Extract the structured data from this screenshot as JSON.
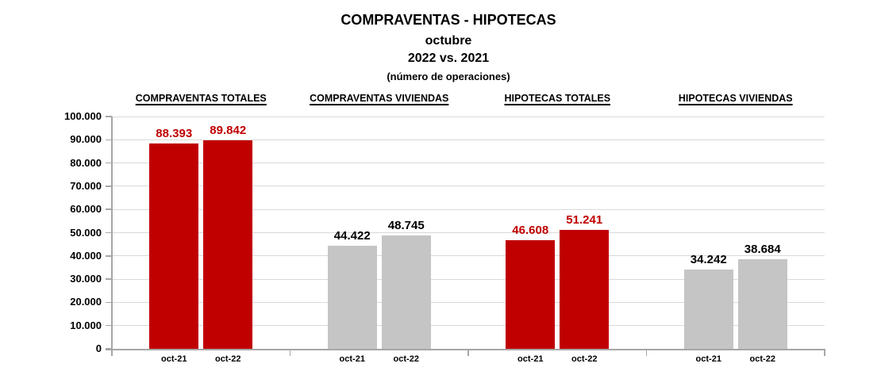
{
  "title": {
    "main": "COMPRAVENTAS - HIPOTECAS",
    "sub1": "octubre",
    "sub2": "2022 vs. 2021",
    "sub3": "(número de operaciones)"
  },
  "chart_data": {
    "type": "bar",
    "title": "COMPRAVENTAS - HIPOTECAS",
    "subtitle": [
      "octubre",
      "2022 vs. 2021",
      "(número de operaciones)"
    ],
    "categories": [
      "oct-21",
      "oct-22"
    ],
    "ylim": [
      0,
      100000
    ],
    "y_tick_step": 10000,
    "y_tick_labels": [
      "100.000",
      "90.000",
      "80.000",
      "70.000",
      "60.000",
      "50.000",
      "40.000",
      "30.000",
      "20.000",
      "10.000",
      "0"
    ],
    "grid": true,
    "legend": false,
    "groups": [
      {
        "label": "COMPRAVENTAS TOTALES",
        "values": [
          88393,
          89842
        ],
        "value_labels": [
          "88.393",
          "89.842"
        ],
        "bar_color": "#C00000",
        "value_label_color": "#C00000"
      },
      {
        "label": "COMPRAVENTAS VIVIENDAS",
        "values": [
          44422,
          48745
        ],
        "value_labels": [
          "44.422",
          "48.745"
        ],
        "bar_color": "#C5C5C5",
        "value_label_color": "#000000"
      },
      {
        "label": "HIPOTECAS TOTALES",
        "values": [
          46608,
          51241
        ],
        "value_labels": [
          "46.608",
          "51.241"
        ],
        "bar_color": "#C00000",
        "value_label_color": "#C00000"
      },
      {
        "label": "HIPOTECAS VIVIENDAS",
        "values": [
          34242,
          38684
        ],
        "value_labels": [
          "34.242",
          "38.684"
        ],
        "bar_color": "#C5C5C5",
        "value_label_color": "#000000"
      }
    ],
    "colors": {
      "axis": "#A6A6A6",
      "gridline": "#D9D9D9",
      "title_text": "#000000"
    }
  }
}
